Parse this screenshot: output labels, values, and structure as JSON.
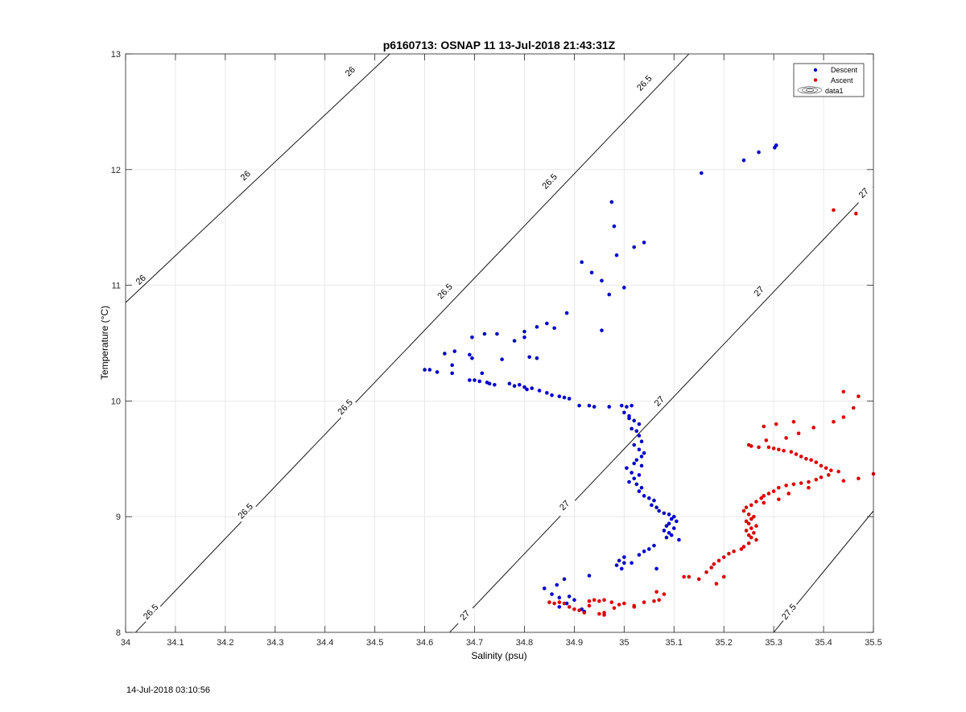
{
  "chart_data": {
    "type": "scatter",
    "title": "p6160713: OSNAP 11 13-Jul-2018 21:43:31Z",
    "xlabel": "Salinity (psu)",
    "ylabel": "Temperature (°C)",
    "xlim": [
      34,
      35.5
    ],
    "ylim": [
      8,
      13
    ],
    "xticks": [
      "34",
      "34.1",
      "34.2",
      "34.3",
      "34.4",
      "34.5",
      "34.6",
      "34.7",
      "34.8",
      "34.9",
      "35",
      "35.1",
      "35.2",
      "35.3",
      "35.4",
      "35.5"
    ],
    "yticks": [
      "8",
      "9",
      "10",
      "11",
      "12",
      "13"
    ],
    "grid": true,
    "legend_position": "top-right",
    "legend": [
      "Descent",
      "Ascent",
      "data1"
    ],
    "contours": [
      {
        "level": "26",
        "p1": [
          34.0,
          10.85
        ],
        "p2": [
          34.53,
          13.0
        ],
        "labels": [
          [
            34.03,
            11.05
          ],
          [
            34.24,
            11.95
          ],
          [
            34.45,
            12.85
          ]
        ]
      },
      {
        "level": "26.5",
        "p1": [
          34.02,
          8.0
        ],
        "p2": [
          35.13,
          13.0
        ],
        "labels": [
          [
            34.05,
            8.18
          ],
          [
            34.24,
            9.05
          ],
          [
            34.44,
            9.95
          ],
          [
            34.64,
            10.95
          ],
          [
            34.85,
            11.9
          ],
          [
            35.04,
            12.75
          ]
        ]
      },
      {
        "level": "27",
        "p1": [
          34.65,
          8.0
        ],
        "p2": [
          35.5,
          11.85
        ],
        "labels": [
          [
            34.68,
            8.15
          ],
          [
            34.88,
            9.1
          ],
          [
            35.07,
            10.0
          ],
          [
            35.27,
            10.95
          ],
          [
            35.48,
            11.8
          ]
        ]
      },
      {
        "level": "27.5",
        "p1": [
          35.3,
          8.0
        ],
        "p2": [
          35.5,
          9.05
        ],
        "labels": [
          [
            35.33,
            8.18
          ]
        ]
      }
    ],
    "series": [
      {
        "name": "Descent",
        "color": "#0000cc",
        "points": [
          [
            35.305,
            12.21
          ],
          [
            35.302,
            12.19
          ],
          [
            35.27,
            12.15
          ],
          [
            35.24,
            12.08
          ],
          [
            35.155,
            11.97
          ],
          [
            34.975,
            11.72
          ],
          [
            34.98,
            11.51
          ],
          [
            35.04,
            11.37
          ],
          [
            35.02,
            11.33
          ],
          [
            34.985,
            11.26
          ],
          [
            34.915,
            11.2
          ],
          [
            34.935,
            11.11
          ],
          [
            34.955,
            11.04
          ],
          [
            35.0,
            10.98
          ],
          [
            34.97,
            10.92
          ],
          [
            34.885,
            10.76
          ],
          [
            34.845,
            10.67
          ],
          [
            34.825,
            10.64
          ],
          [
            34.86,
            10.63
          ],
          [
            34.955,
            10.61
          ],
          [
            34.8,
            10.6
          ],
          [
            34.72,
            10.58
          ],
          [
            34.745,
            10.58
          ],
          [
            34.695,
            10.55
          ],
          [
            34.8,
            10.55
          ],
          [
            34.78,
            10.52
          ],
          [
            34.66,
            10.43
          ],
          [
            34.64,
            10.41
          ],
          [
            34.69,
            10.4
          ],
          [
            34.695,
            10.37
          ],
          [
            34.755,
            10.36
          ],
          [
            34.81,
            10.38
          ],
          [
            34.825,
            10.37
          ],
          [
            34.655,
            10.31
          ],
          [
            34.6,
            10.27
          ],
          [
            34.61,
            10.27
          ],
          [
            34.625,
            10.25
          ],
          [
            34.655,
            10.24
          ],
          [
            34.715,
            10.24
          ],
          [
            34.69,
            10.18
          ],
          [
            34.7,
            10.18
          ],
          [
            34.71,
            10.17
          ],
          [
            34.725,
            10.16
          ],
          [
            34.73,
            10.15
          ],
          [
            34.74,
            10.14
          ],
          [
            34.77,
            10.15
          ],
          [
            34.78,
            10.13
          ],
          [
            34.79,
            10.14
          ],
          [
            34.8,
            10.12
          ],
          [
            34.805,
            10.1
          ],
          [
            34.815,
            10.11
          ],
          [
            34.83,
            10.09
          ],
          [
            34.845,
            10.07
          ],
          [
            34.855,
            10.05
          ],
          [
            34.87,
            10.04
          ],
          [
            34.88,
            10.03
          ],
          [
            34.89,
            10.02
          ],
          [
            34.91,
            9.96
          ],
          [
            34.93,
            9.96
          ],
          [
            34.94,
            9.95
          ],
          [
            34.97,
            9.95
          ],
          [
            34.995,
            9.96
          ],
          [
            35.005,
            9.95
          ],
          [
            35.015,
            9.96
          ],
          [
            35.0,
            9.9
          ],
          [
            35.01,
            9.87
          ],
          [
            35.02,
            9.83
          ],
          [
            35.03,
            9.8
          ],
          [
            35.01,
            9.85
          ],
          [
            35.015,
            9.76
          ],
          [
            35.025,
            9.74
          ],
          [
            35.03,
            9.7
          ],
          [
            35.035,
            9.65
          ],
          [
            35.02,
            9.62
          ],
          [
            35.03,
            9.58
          ],
          [
            35.04,
            9.55
          ],
          [
            35.035,
            9.52
          ],
          [
            35.025,
            9.49
          ],
          [
            35.02,
            9.46
          ],
          [
            35.035,
            9.44
          ],
          [
            35.005,
            9.42
          ],
          [
            35.015,
            9.38
          ],
          [
            35.03,
            9.36
          ],
          [
            35.02,
            9.33
          ],
          [
            35.01,
            9.3
          ],
          [
            35.025,
            9.28
          ],
          [
            35.035,
            9.25
          ],
          [
            35.03,
            9.22
          ],
          [
            35.04,
            9.18
          ],
          [
            35.05,
            9.16
          ],
          [
            35.06,
            9.14
          ],
          [
            35.055,
            9.1
          ],
          [
            35.065,
            9.08
          ],
          [
            35.07,
            9.05
          ],
          [
            35.08,
            9.03
          ],
          [
            35.09,
            9.02
          ],
          [
            35.1,
            9.0
          ],
          [
            35.095,
            8.98
          ],
          [
            35.105,
            8.96
          ],
          [
            35.09,
            8.94
          ],
          [
            35.085,
            8.92
          ],
          [
            35.1,
            8.9
          ],
          [
            35.08,
            8.88
          ],
          [
            35.09,
            8.86
          ],
          [
            35.095,
            8.84
          ],
          [
            35.085,
            8.82
          ],
          [
            35.11,
            8.8
          ],
          [
            35.06,
            8.75
          ],
          [
            35.05,
            8.72
          ],
          [
            35.04,
            8.7
          ],
          [
            35.03,
            8.67
          ],
          [
            35.0,
            8.65
          ],
          [
            34.99,
            8.62
          ],
          [
            35.0,
            8.6
          ],
          [
            34.985,
            8.58
          ],
          [
            35.015,
            8.6
          ],
          [
            34.995,
            8.55
          ],
          [
            35.065,
            8.55
          ],
          [
            34.93,
            8.49
          ],
          [
            34.88,
            8.46
          ],
          [
            34.865,
            8.41
          ],
          [
            34.84,
            8.38
          ],
          [
            34.855,
            8.33
          ],
          [
            34.87,
            8.3
          ],
          [
            34.89,
            8.31
          ],
          [
            34.9,
            8.28
          ],
          [
            34.885,
            8.25
          ],
          [
            34.87,
            8.22
          ],
          [
            34.915,
            8.2
          ],
          [
            34.92,
            8.18
          ]
        ]
      },
      {
        "name": "Ascent",
        "color": "#dd0000",
        "points": [
          [
            35.42,
            11.65
          ],
          [
            35.465,
            11.62
          ],
          [
            35.44,
            10.08
          ],
          [
            35.47,
            10.04
          ],
          [
            35.46,
            9.94
          ],
          [
            35.44,
            9.86
          ],
          [
            35.42,
            9.82
          ],
          [
            35.34,
            9.82
          ],
          [
            35.305,
            9.8
          ],
          [
            35.28,
            9.78
          ],
          [
            35.38,
            9.77
          ],
          [
            35.35,
            9.72
          ],
          [
            35.325,
            9.68
          ],
          [
            35.285,
            9.66
          ],
          [
            35.25,
            9.62
          ],
          [
            35.255,
            9.61
          ],
          [
            35.27,
            9.6
          ],
          [
            35.29,
            9.6
          ],
          [
            35.3,
            9.59
          ],
          [
            35.31,
            9.58
          ],
          [
            35.32,
            9.57
          ],
          [
            35.335,
            9.56
          ],
          [
            35.345,
            9.54
          ],
          [
            35.355,
            9.52
          ],
          [
            35.365,
            9.5
          ],
          [
            35.375,
            9.49
          ],
          [
            35.385,
            9.47
          ],
          [
            35.395,
            9.44
          ],
          [
            35.405,
            9.42
          ],
          [
            35.415,
            9.4
          ],
          [
            35.43,
            9.39
          ],
          [
            35.41,
            9.36
          ],
          [
            35.395,
            9.34
          ],
          [
            35.385,
            9.32
          ],
          [
            35.37,
            9.3
          ],
          [
            35.355,
            9.29
          ],
          [
            35.34,
            9.28
          ],
          [
            35.325,
            9.27
          ],
          [
            35.31,
            9.25
          ],
          [
            35.3,
            9.22
          ],
          [
            35.29,
            9.2
          ],
          [
            35.28,
            9.18
          ],
          [
            35.275,
            9.16
          ],
          [
            35.265,
            9.13
          ],
          [
            35.255,
            9.1
          ],
          [
            35.245,
            9.08
          ],
          [
            35.24,
            9.05
          ],
          [
            35.25,
            9.02
          ],
          [
            35.26,
            9.0
          ],
          [
            35.255,
            8.98
          ],
          [
            35.245,
            8.96
          ],
          [
            35.25,
            8.94
          ],
          [
            35.265,
            8.92
          ],
          [
            35.255,
            8.9
          ],
          [
            35.245,
            8.88
          ],
          [
            35.26,
            8.86
          ],
          [
            35.25,
            8.84
          ],
          [
            35.255,
            8.82
          ],
          [
            35.265,
            8.8
          ],
          [
            35.25,
            8.77
          ],
          [
            35.24,
            8.74
          ],
          [
            35.235,
            8.72
          ],
          [
            35.22,
            8.7
          ],
          [
            35.21,
            8.68
          ],
          [
            35.2,
            8.65
          ],
          [
            35.19,
            8.62
          ],
          [
            35.18,
            8.59
          ],
          [
            35.175,
            8.56
          ],
          [
            35.165,
            8.52
          ],
          [
            35.2,
            8.48
          ],
          [
            35.185,
            8.42
          ],
          [
            35.5,
            9.37
          ],
          [
            35.47,
            9.33
          ],
          [
            35.44,
            9.31
          ],
          [
            35.37,
            9.25
          ],
          [
            35.33,
            9.2
          ],
          [
            35.31,
            9.15
          ],
          [
            35.28,
            9.12
          ],
          [
            35.15,
            8.46
          ],
          [
            35.12,
            8.48
          ],
          [
            35.13,
            8.48
          ],
          [
            35.08,
            8.33
          ],
          [
            35.065,
            8.35
          ],
          [
            34.93,
            8.27
          ],
          [
            34.94,
            8.28
          ],
          [
            34.95,
            8.27
          ],
          [
            34.96,
            8.28
          ],
          [
            34.975,
            8.26
          ],
          [
            34.99,
            8.24
          ],
          [
            35.0,
            8.25
          ],
          [
            35.02,
            8.23
          ],
          [
            35.04,
            8.26
          ],
          [
            35.06,
            8.27
          ],
          [
            35.07,
            8.28
          ],
          [
            34.85,
            8.26
          ],
          [
            34.86,
            8.25
          ],
          [
            34.87,
            8.26
          ],
          [
            34.88,
            8.25
          ],
          [
            34.89,
            8.22
          ],
          [
            34.9,
            8.2
          ],
          [
            34.91,
            8.19
          ],
          [
            34.92,
            8.17
          ],
          [
            34.95,
            8.16
          ],
          [
            34.96,
            8.15
          ],
          [
            34.96,
            8.17
          ],
          [
            34.98,
            8.21
          ],
          [
            35.02,
            8.22
          ],
          [
            34.93,
            8.23
          ]
        ]
      }
    ]
  },
  "footer": {
    "timestamp": "14-Jul-2018 03:10:56"
  }
}
